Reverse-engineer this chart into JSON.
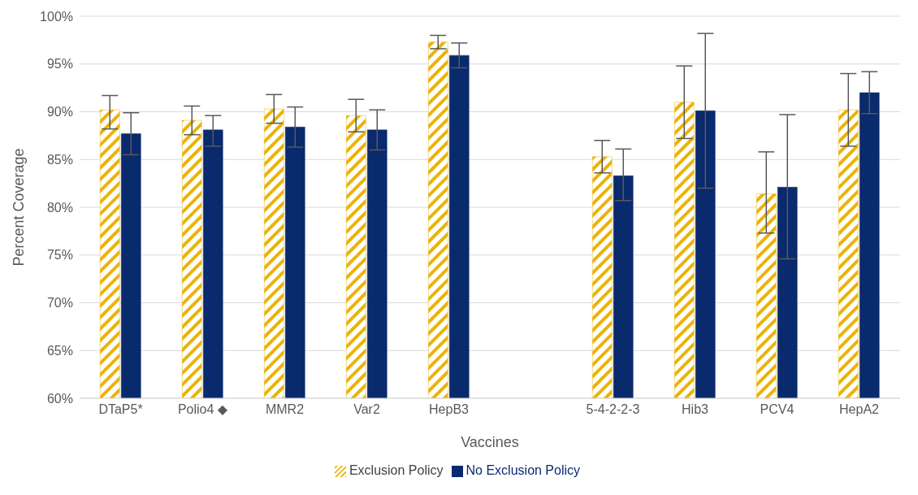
{
  "chart_data": {
    "type": "bar",
    "xlabel": "Vaccines",
    "ylabel": "Percent Coverage",
    "categories": [
      "DTaP5*",
      "Polio4 ◆",
      "MMR2",
      "Var2",
      "HepB3",
      null,
      "5-4-2-2-3",
      "Hib3",
      "PCV4",
      "HepA2"
    ],
    "series": [
      {
        "name": "Exclusion Policy",
        "color": "#eab308",
        "values": [
          90.2,
          89.1,
          90.3,
          89.6,
          97.3,
          null,
          85.3,
          91.0,
          81.4,
          90.2
        ],
        "errors": [
          [
            88.2,
            91.7
          ],
          [
            87.6,
            90.6
          ],
          [
            88.8,
            91.8
          ],
          [
            87.9,
            91.3
          ],
          [
            96.6,
            98.0
          ],
          null,
          [
            83.6,
            87.0
          ],
          [
            87.2,
            94.8
          ],
          [
            77.3,
            85.8
          ],
          [
            86.4,
            94.0
          ]
        ]
      },
      {
        "name": "No Exclusion Policy",
        "color": "#0a2a6e",
        "values": [
          87.7,
          88.1,
          88.4,
          88.1,
          95.9,
          null,
          83.3,
          90.1,
          82.1,
          92.0
        ],
        "errors": [
          [
            85.5,
            89.9
          ],
          [
            86.4,
            89.6
          ],
          [
            86.3,
            90.5
          ],
          [
            86.0,
            90.2
          ],
          [
            94.6,
            97.2
          ],
          null,
          [
            80.7,
            86.1
          ],
          [
            82.0,
            98.2
          ],
          [
            74.6,
            89.7
          ],
          [
            89.8,
            94.2
          ]
        ]
      }
    ],
    "ylim": [
      60,
      100
    ],
    "yticks": [
      {
        "value": 60,
        "label": "60%"
      },
      {
        "value": 65,
        "label": "65%"
      },
      {
        "value": 70,
        "label": "70%"
      },
      {
        "value": 75,
        "label": "75%"
      },
      {
        "value": 80,
        "label": "80%"
      },
      {
        "value": 85,
        "label": "85%"
      },
      {
        "value": 90,
        "label": "90%"
      },
      {
        "value": 95,
        "label": "95%"
      },
      {
        "value": 100,
        "label": "100%"
      }
    ],
    "grid": "y",
    "legend": "bottom"
  }
}
